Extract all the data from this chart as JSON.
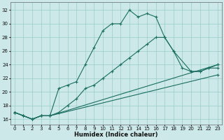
{
  "xlabel": "Humidex (Indice chaleur)",
  "bg_color": "#cce8e8",
  "grid_color": "#99cccc",
  "line_color": "#1a6e60",
  "xlim": [
    -0.5,
    23.5
  ],
  "ylim": [
    15.2,
    33.2
  ],
  "yticks": [
    16,
    18,
    20,
    22,
    24,
    26,
    28,
    30,
    32
  ],
  "xticks": [
    0,
    1,
    2,
    3,
    4,
    5,
    6,
    7,
    8,
    9,
    10,
    11,
    12,
    13,
    14,
    15,
    16,
    17,
    18,
    19,
    20,
    21,
    22,
    23
  ],
  "lines": [
    {
      "x": [
        0,
        1,
        2,
        3,
        4,
        5,
        6,
        7,
        8,
        9,
        10,
        11,
        12,
        13,
        14,
        15,
        16,
        17,
        18,
        20,
        21,
        22,
        23
      ],
      "y": [
        17,
        16.5,
        16,
        16.5,
        16.5,
        20.5,
        21.0,
        21.5,
        24.0,
        26.5,
        29.0,
        30.0,
        30.0,
        32.0,
        31.0,
        31.5,
        31.0,
        28.0,
        26.0,
        23.0,
        23.0,
        23.5,
        23.5
      ]
    },
    {
      "x": [
        0,
        1,
        2,
        3,
        4,
        5,
        6,
        7,
        8,
        9,
        10,
        11,
        12,
        13,
        14,
        15,
        16,
        17,
        18,
        19,
        20,
        21,
        22,
        23
      ],
      "y": [
        17,
        16.5,
        16,
        16.5,
        16.5,
        17.0,
        18.0,
        19.0,
        20.5,
        21.0,
        22.0,
        23.0,
        24.0,
        25.0,
        26.0,
        27.0,
        28.0,
        28.0,
        26.0,
        23.5,
        23.0,
        23.0,
        23.5,
        24.0
      ]
    },
    {
      "x": [
        0,
        1,
        2,
        3,
        4,
        23
      ],
      "y": [
        17,
        16.5,
        16,
        16.5,
        16.5,
        24.0
      ]
    },
    {
      "x": [
        0,
        1,
        2,
        3,
        4,
        23
      ],
      "y": [
        17,
        16.5,
        16,
        16.5,
        16.5,
        22.5
      ]
    }
  ]
}
